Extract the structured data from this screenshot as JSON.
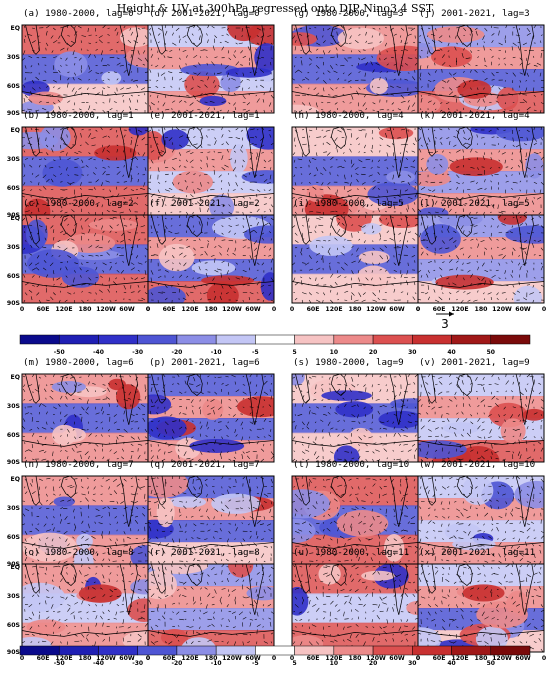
{
  "title": "Height & UV at 300hPa regressed onto DJP Nino3.4 SST",
  "chart_data": {
    "type": "heatmap",
    "title": "Height & UV at 300hPa regressed onto DJP Nino3.4 SST",
    "y_ticks": [
      "EQ",
      "30S",
      "60S",
      "90S"
    ],
    "x_ticks": [
      "0",
      "60E",
      "120E",
      "180",
      "120W",
      "60W",
      "0"
    ],
    "colorbar": {
      "ticks": [
        "-50",
        "-40",
        "-30",
        "-20",
        "-10",
        "-5",
        "5",
        "10",
        "20",
        "30",
        "40",
        "50"
      ],
      "colors": [
        "#0a0a8c",
        "#1f1fb4",
        "#3030c8",
        "#4e55d4",
        "#8c8ee6",
        "#c3c6f5",
        "#ffffff",
        "#f6c3c3",
        "#ec8a8a",
        "#dc5050",
        "#c83030",
        "#a01818",
        "#7a0a0a"
      ]
    },
    "reference_vector": "3",
    "panels": [
      {
        "label": "(a) 1980-2000, lag=0"
      },
      {
        "label": "(d) 2001-2021, lag=0"
      },
      {
        "label": "(g) 1980-2000, lag=3"
      },
      {
        "label": "(j) 2001-2021, lag=3"
      },
      {
        "label": "(b) 1980-2000, lag=1"
      },
      {
        "label": "(e) 2001-2021, lag=1"
      },
      {
        "label": "(h) 1980-2000, lag=4"
      },
      {
        "label": "(k) 2001-2021, lag=4"
      },
      {
        "label": "(c) 1980-2000, lag=2"
      },
      {
        "label": "(f) 2001-2021, lag=2"
      },
      {
        "label": "(i) 1980-2000, lag=5"
      },
      {
        "label": "(l) 2001-2021, lag=5"
      },
      {
        "label": "(m) 1980-2000, lag=6"
      },
      {
        "label": "(p) 2001-2021, lag=6"
      },
      {
        "label": "(s) 1980-2000, lag=9"
      },
      {
        "label": "(v) 2001-2021, lag=9"
      },
      {
        "label": "(n) 1980-2000, lag=7"
      },
      {
        "label": "(q) 2001-2021, lag=7"
      },
      {
        "label": "(t) 1980-2000, lag=10"
      },
      {
        "label": "(w) 2001-2021, lag=10"
      },
      {
        "label": "(o) 1980-2000, lag=8"
      },
      {
        "label": "(r) 2001-2021, lag=8"
      },
      {
        "label": "(u) 1980-2000, lag=11"
      },
      {
        "label": "(x) 2001-2021, lag=11"
      }
    ]
  }
}
